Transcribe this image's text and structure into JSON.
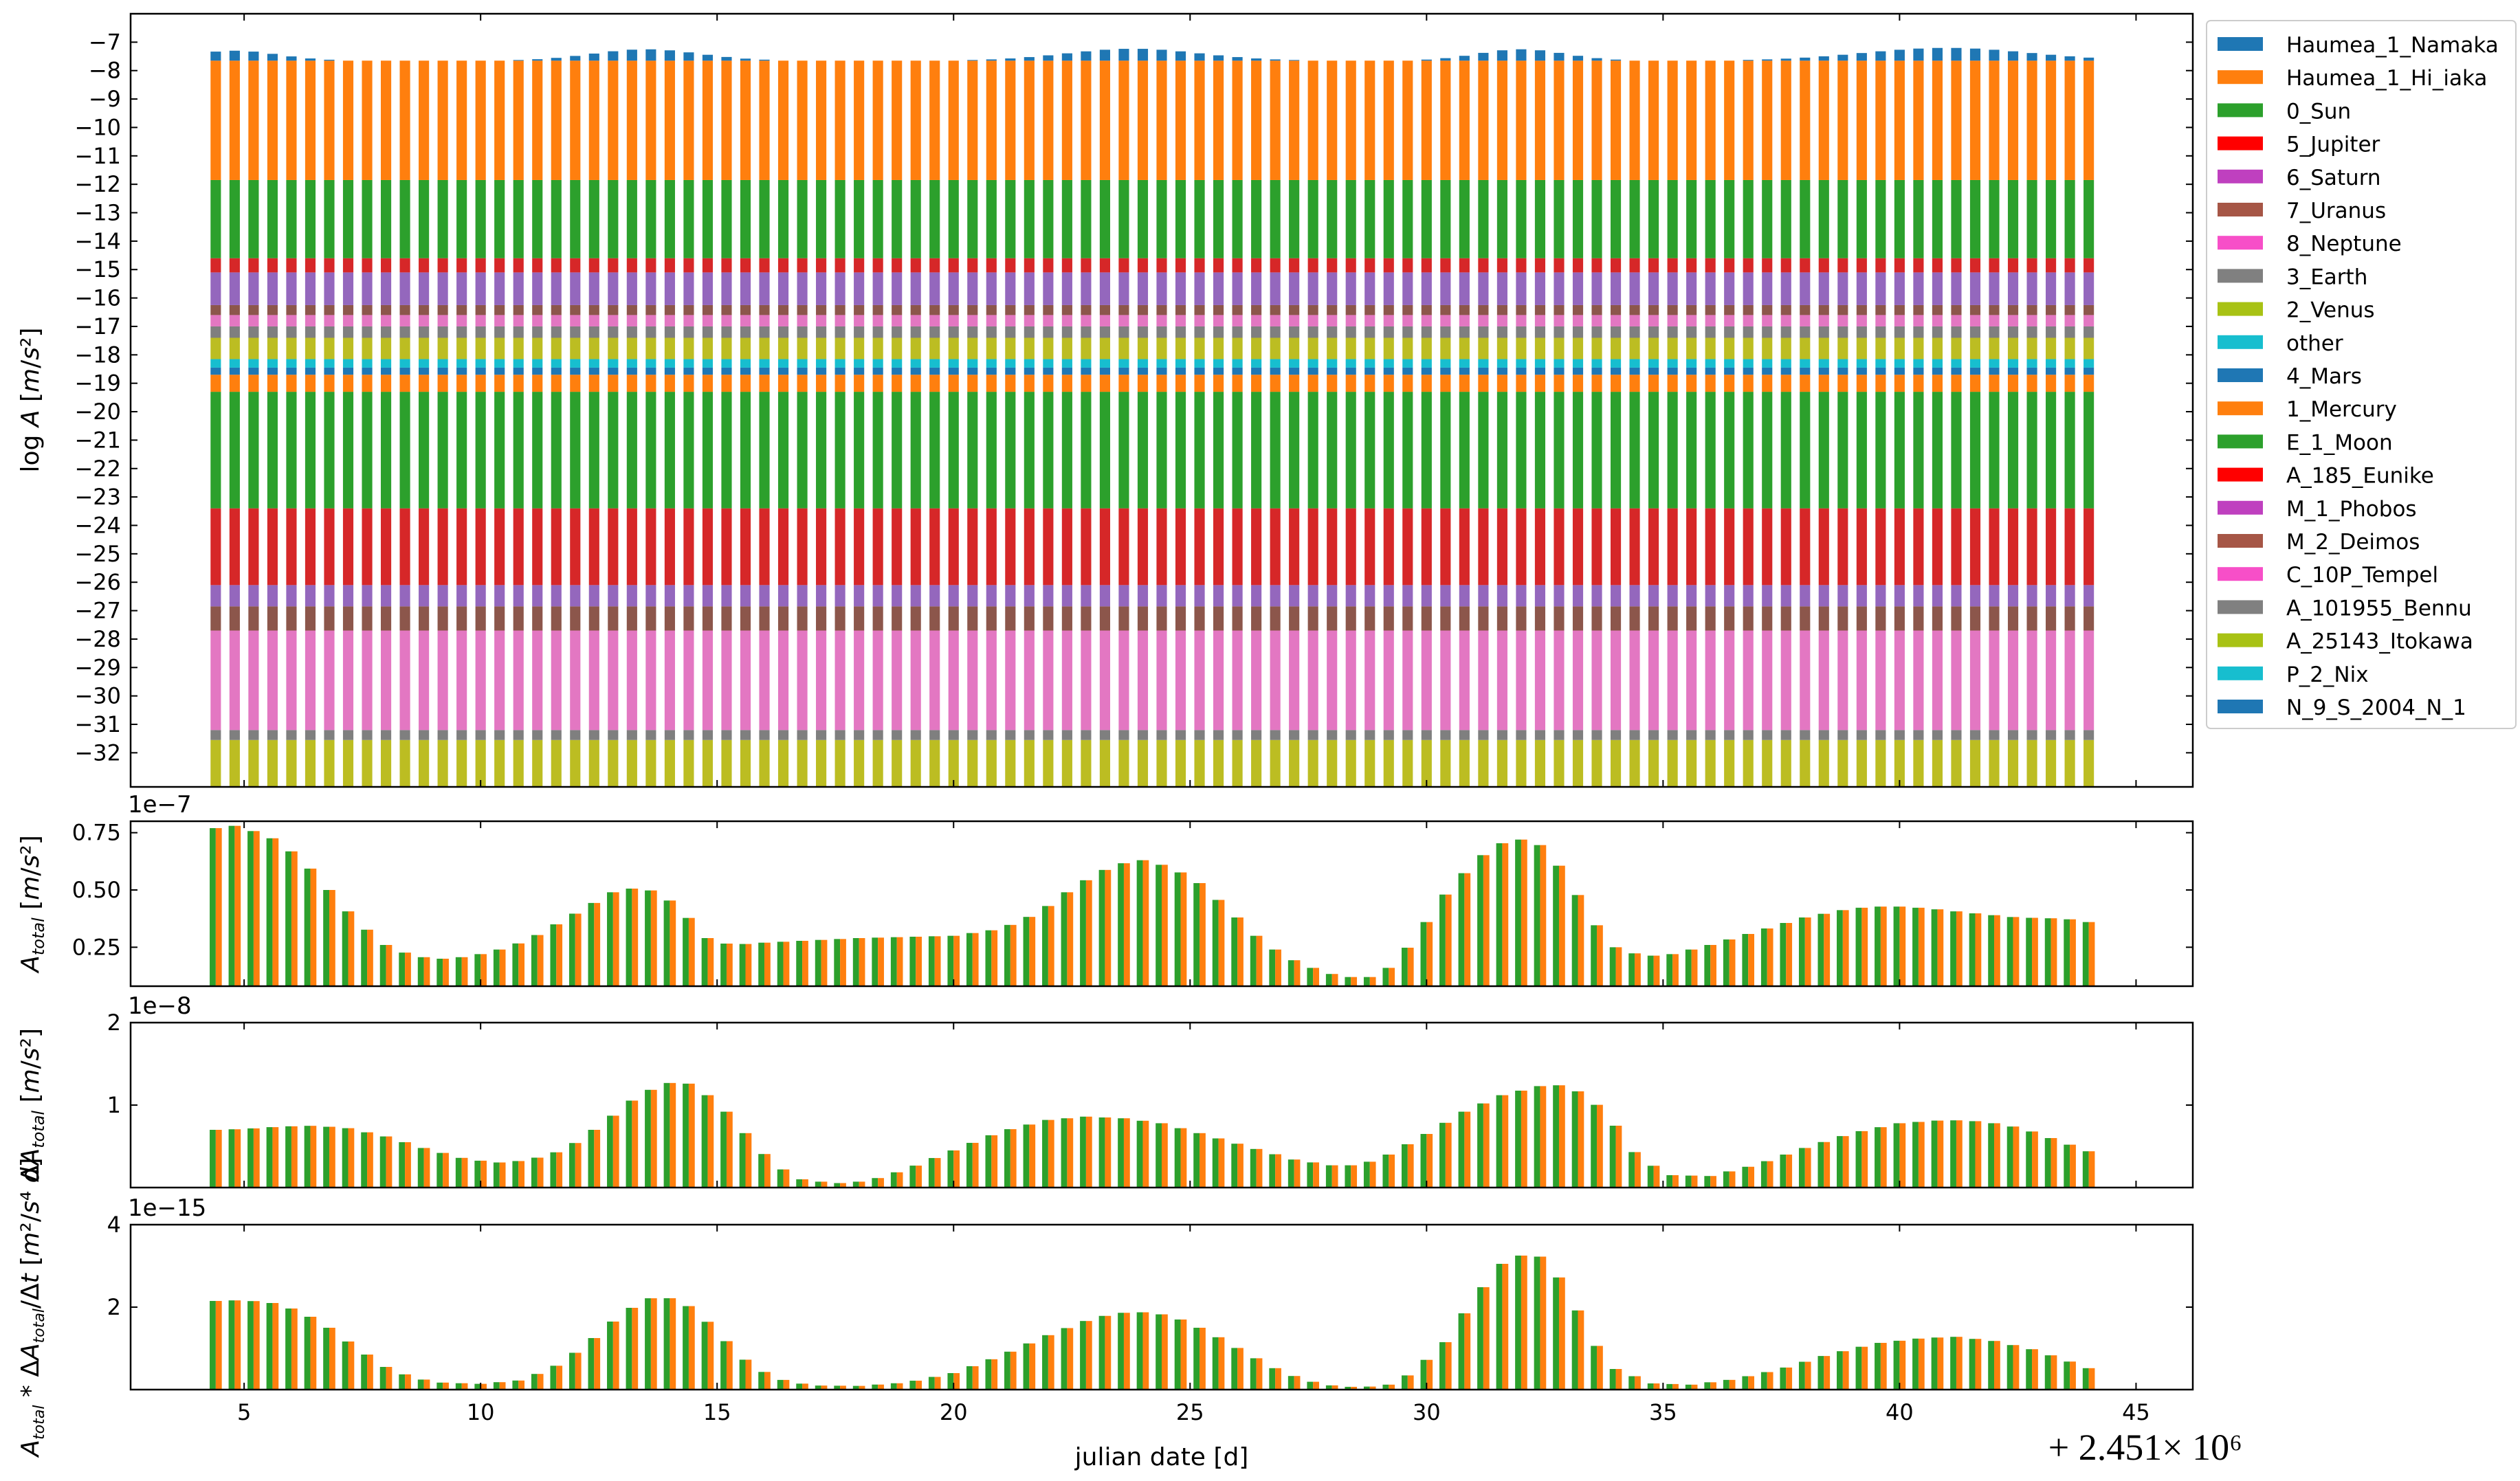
{
  "chart_data": [
    {
      "type": "bar",
      "stacked": true,
      "xlabel": "",
      "ylabel": "log A [m/s²]",
      "ylim": [
        -33.2,
        -6.0
      ],
      "yticks": [
        -7,
        -8,
        -9,
        -10,
        -11,
        -12,
        -13,
        -14,
        -15,
        -16,
        -17,
        -18,
        -19,
        -20,
        -21,
        -22,
        -23,
        -24,
        -25,
        -26,
        -27,
        -28,
        -29,
        -30,
        -31,
        -32
      ],
      "x": {
        "start": 4.4,
        "end": 44.0,
        "count": 100
      },
      "legend_position": "outside-right",
      "grid": false,
      "series_bands": [
        {
          "name": "A_25143_Itokawa",
          "color": "#bcbd22",
          "from": -33.2,
          "to": -31.55
        },
        {
          "name": "A_101955_Bennu",
          "color": "#7f7f7f",
          "from": -31.55,
          "to": -31.2
        },
        {
          "name": "C_10P_Tempel",
          "color": "#e377c2",
          "from": -31.2,
          "to": -27.7
        },
        {
          "name": "M_2_Deimos",
          "color": "#8c564b",
          "from": -27.7,
          "to": -26.85
        },
        {
          "name": "M_1_Phobos",
          "color": "#9467bd",
          "from": -26.85,
          "to": -26.1
        },
        {
          "name": "A_185_Eunike",
          "color": "#d62728",
          "from": -26.1,
          "to": -23.4
        },
        {
          "name": "E_1_Moon",
          "color": "#2ca02c",
          "from": -23.4,
          "to": -19.3
        },
        {
          "name": "1_Mercury",
          "color": "#ff7f0e",
          "from": -19.3,
          "to": -18.7
        },
        {
          "name": "4_Mars",
          "color": "#1f77b4",
          "from": -18.7,
          "to": -18.45
        },
        {
          "name": "other",
          "color": "#17becf",
          "from": -18.45,
          "to": -18.15
        },
        {
          "name": "2_Venus",
          "color": "#bcbd22",
          "from": -18.15,
          "to": -17.4
        },
        {
          "name": "3_Earth",
          "color": "#7f7f7f",
          "from": -17.4,
          "to": -17.0
        },
        {
          "name": "8_Neptune",
          "color": "#e377c2",
          "from": -17.0,
          "to": -16.6
        },
        {
          "name": "7_Uranus",
          "color": "#8c564b",
          "from": -16.6,
          "to": -16.25
        },
        {
          "name": "6_Saturn",
          "color": "#9467bd",
          "from": -16.25,
          "to": -15.1
        },
        {
          "name": "5_Jupiter",
          "color": "#d62728",
          "from": -15.1,
          "to": -14.6
        },
        {
          "name": "0_Sun",
          "color": "#2ca02c",
          "from": -14.6,
          "to": -11.85
        },
        {
          "name": "Haumea_1_Hi_iaka",
          "color": "#ff7f0e",
          "from": -11.85,
          "to": -7.65
        }
      ],
      "top_series": {
        "name": "Haumea_1_Namaka",
        "color": "#1f77b4",
        "base": -7.65,
        "peaks": [
          {
            "x": 4.8,
            "h": 0.35,
            "w": 1.3
          },
          {
            "x": 13.5,
            "h": 0.4,
            "w": 1.6
          },
          {
            "x": 23.8,
            "h": 0.42,
            "w": 2.0
          },
          {
            "x": 32.0,
            "h": 0.4,
            "w": 1.3
          },
          {
            "x": 41.0,
            "h": 0.45,
            "w": 2.5
          }
        ]
      },
      "legend": [
        {
          "label": "Haumea_1_Namaka",
          "color": "#1f77b4"
        },
        {
          "label": "Haumea_1_Hi_iaka",
          "color": "#ff7f0e"
        },
        {
          "label": "0_Sun",
          "color": "#2ca02c"
        },
        {
          "label": "5_Jupiter",
          "color": "#ff0000"
        },
        {
          "label": "6_Saturn",
          "color": "#bf40bf"
        },
        {
          "label": "7_Uranus",
          "color": "#a65646"
        },
        {
          "label": "8_Neptune",
          "color": "#f74fc8"
        },
        {
          "label": "3_Earth",
          "color": "#808080"
        },
        {
          "label": "2_Venus",
          "color": "#a8c214"
        },
        {
          "label": "other",
          "color": "#17becf"
        },
        {
          "label": "4_Mars",
          "color": "#1f77b4"
        },
        {
          "label": "1_Mercury",
          "color": "#ff7f0e"
        },
        {
          "label": "E_1_Moon",
          "color": "#2ca02c"
        },
        {
          "label": "A_185_Eunike",
          "color": "#ff0000"
        },
        {
          "label": "M_1_Phobos",
          "color": "#bf40bf"
        },
        {
          "label": "M_2_Deimos",
          "color": "#a65646"
        },
        {
          "label": "C_10P_Tempel",
          "color": "#f74fc8"
        },
        {
          "label": "A_101955_Bennu",
          "color": "#808080"
        },
        {
          "label": "A_25143_Itokawa",
          "color": "#a8c214"
        },
        {
          "label": "P_2_Nix",
          "color": "#17becf"
        },
        {
          "label": "N_9_S_2004_N_1",
          "color": "#1f77b4"
        }
      ]
    },
    {
      "type": "bar",
      "ylabel": "A_total [m/s²]",
      "offset_text": "1e−7",
      "ylim": [
        0.08,
        0.8
      ],
      "yticks": [
        0.25,
        0.5,
        0.75
      ],
      "ytick_labels": [
        "0.25",
        "0.50",
        "0.75"
      ],
      "colors": [
        "#2ca02c",
        "#ff7f0e"
      ],
      "x": {
        "start": 4.4,
        "end": 44.0,
        "count": 100
      },
      "points": [
        [
          4.4,
          0.77
        ],
        [
          4.8,
          0.78
        ],
        [
          5.5,
          0.74
        ],
        [
          6.2,
          0.64
        ],
        [
          6.8,
          0.5
        ],
        [
          7.4,
          0.36
        ],
        [
          8.0,
          0.26
        ],
        [
          8.6,
          0.21
        ],
        [
          9.2,
          0.2
        ],
        [
          9.8,
          0.21
        ],
        [
          10.4,
          0.24
        ],
        [
          11.0,
          0.28
        ],
        [
          11.6,
          0.35
        ],
        [
          12.2,
          0.42
        ],
        [
          12.8,
          0.49
        ],
        [
          13.3,
          0.51
        ],
        [
          13.8,
          0.49
        ],
        [
          14.3,
          0.4
        ],
        [
          14.8,
          0.29
        ],
        [
          15.3,
          0.26
        ],
        [
          16.0,
          0.27
        ],
        [
          17.0,
          0.28
        ],
        [
          18.0,
          0.29
        ],
        [
          19.0,
          0.295
        ],
        [
          20.0,
          0.3
        ],
        [
          21.0,
          0.33
        ],
        [
          21.8,
          0.4
        ],
        [
          22.6,
          0.52
        ],
        [
          23.4,
          0.61
        ],
        [
          24.0,
          0.63
        ],
        [
          24.6,
          0.6
        ],
        [
          25.2,
          0.53
        ],
        [
          25.8,
          0.42
        ],
        [
          26.4,
          0.3
        ],
        [
          27.0,
          0.21
        ],
        [
          27.6,
          0.16
        ],
        [
          28.2,
          0.12
        ],
        [
          28.8,
          0.12
        ],
        [
          29.3,
          0.17
        ],
        [
          29.8,
          0.3
        ],
        [
          30.4,
          0.48
        ],
        [
          31.0,
          0.62
        ],
        [
          31.5,
          0.7
        ],
        [
          32.0,
          0.72
        ],
        [
          32.5,
          0.69
        ],
        [
          33.0,
          0.55
        ],
        [
          33.5,
          0.37
        ],
        [
          34.0,
          0.25
        ],
        [
          34.6,
          0.21
        ],
        [
          35.2,
          0.22
        ],
        [
          36.0,
          0.26
        ],
        [
          37.0,
          0.32
        ],
        [
          38.0,
          0.38
        ],
        [
          39.0,
          0.42
        ],
        [
          39.8,
          0.43
        ],
        [
          40.6,
          0.42
        ],
        [
          41.5,
          0.4
        ],
        [
          42.5,
          0.38
        ],
        [
          43.5,
          0.375
        ],
        [
          44.0,
          0.36
        ]
      ]
    },
    {
      "type": "bar",
      "ylabel": "ΔA_total [m/s²]",
      "offset_text": "1e−8",
      "ylim": [
        0,
        2.0
      ],
      "yticks": [
        1,
        2
      ],
      "ytick_labels": [
        "1",
        "2"
      ],
      "colors": [
        "#2ca02c",
        "#ff7f0e"
      ],
      "x": {
        "start": 4.4,
        "end": 44.0,
        "count": 100
      },
      "points": [
        [
          4.4,
          0.7
        ],
        [
          5.0,
          0.71
        ],
        [
          5.8,
          0.74
        ],
        [
          6.5,
          0.75
        ],
        [
          7.2,
          0.72
        ],
        [
          8.0,
          0.62
        ],
        [
          8.8,
          0.48
        ],
        [
          9.6,
          0.36
        ],
        [
          10.3,
          0.3
        ],
        [
          11.0,
          0.33
        ],
        [
          11.8,
          0.46
        ],
        [
          12.6,
          0.78
        ],
        [
          13.3,
          1.1
        ],
        [
          13.9,
          1.27
        ],
        [
          14.4,
          1.26
        ],
        [
          15.0,
          1.05
        ],
        [
          15.6,
          0.66
        ],
        [
          16.2,
          0.28
        ],
        [
          16.8,
          0.1
        ],
        [
          17.5,
          0.05
        ],
        [
          18.2,
          0.08
        ],
        [
          19.0,
          0.22
        ],
        [
          20.0,
          0.45
        ],
        [
          21.0,
          0.68
        ],
        [
          22.0,
          0.82
        ],
        [
          22.8,
          0.86
        ],
        [
          23.6,
          0.84
        ],
        [
          24.4,
          0.78
        ],
        [
          25.2,
          0.66
        ],
        [
          26.2,
          0.5
        ],
        [
          27.2,
          0.34
        ],
        [
          28.0,
          0.27
        ],
        [
          28.6,
          0.27
        ],
        [
          29.2,
          0.4
        ],
        [
          30.0,
          0.65
        ],
        [
          30.8,
          0.92
        ],
        [
          31.6,
          1.12
        ],
        [
          32.4,
          1.23
        ],
        [
          32.8,
          1.24
        ],
        [
          33.4,
          1.13
        ],
        [
          34.0,
          0.75
        ],
        [
          34.5,
          0.35
        ],
        [
          35.2,
          0.15
        ],
        [
          36.0,
          0.14
        ],
        [
          37.0,
          0.28
        ],
        [
          38.0,
          0.48
        ],
        [
          39.0,
          0.66
        ],
        [
          40.0,
          0.78
        ],
        [
          41.0,
          0.82
        ],
        [
          41.8,
          0.8
        ],
        [
          42.6,
          0.72
        ],
        [
          43.4,
          0.56
        ],
        [
          44.0,
          0.44
        ]
      ]
    },
    {
      "type": "bar",
      "ylabel": "A_total * ΔA_total/Δt [m²/(s⁴ d)]",
      "offset_text": "1e−15",
      "ylim": [
        0,
        4.0
      ],
      "yticks": [
        2,
        4
      ],
      "ytick_labels": [
        "2",
        "4"
      ],
      "colors": [
        "#2ca02c",
        "#ff7f0e"
      ],
      "x": {
        "start": 4.4,
        "end": 44.0,
        "count": 100
      },
      "points": [
        [
          4.4,
          2.15
        ],
        [
          5.0,
          2.17
        ],
        [
          5.6,
          2.1
        ],
        [
          6.2,
          1.9
        ],
        [
          6.8,
          1.5
        ],
        [
          7.4,
          1.0
        ],
        [
          8.0,
          0.55
        ],
        [
          8.6,
          0.28
        ],
        [
          9.2,
          0.17
        ],
        [
          10.0,
          0.14
        ],
        [
          10.8,
          0.22
        ],
        [
          11.5,
          0.5
        ],
        [
          12.2,
          1.05
        ],
        [
          12.8,
          1.65
        ],
        [
          13.4,
          2.15
        ],
        [
          13.8,
          2.28
        ],
        [
          14.3,
          2.12
        ],
        [
          14.9,
          1.55
        ],
        [
          15.5,
          0.8
        ],
        [
          16.2,
          0.28
        ],
        [
          17.0,
          0.1
        ],
        [
          18.0,
          0.09
        ],
        [
          19.0,
          0.17
        ],
        [
          20.0,
          0.4
        ],
        [
          21.0,
          0.82
        ],
        [
          22.0,
          1.32
        ],
        [
          23.0,
          1.75
        ],
        [
          23.8,
          1.9
        ],
        [
          24.6,
          1.8
        ],
        [
          25.4,
          1.4
        ],
        [
          26.2,
          0.88
        ],
        [
          27.0,
          0.4
        ],
        [
          27.8,
          0.12
        ],
        [
          28.6,
          0.05
        ],
        [
          29.2,
          0.12
        ],
        [
          29.7,
          0.4
        ],
        [
          30.4,
          1.15
        ],
        [
          31.0,
          2.2
        ],
        [
          31.6,
          3.05
        ],
        [
          32.1,
          3.3
        ],
        [
          32.5,
          3.2
        ],
        [
          33.0,
          2.4
        ],
        [
          33.5,
          1.2
        ],
        [
          34.0,
          0.5
        ],
        [
          34.8,
          0.15
        ],
        [
          35.6,
          0.12
        ],
        [
          36.5,
          0.25
        ],
        [
          37.5,
          0.5
        ],
        [
          38.5,
          0.85
        ],
        [
          39.5,
          1.12
        ],
        [
          40.5,
          1.25
        ],
        [
          41.2,
          1.28
        ],
        [
          42.0,
          1.18
        ],
        [
          42.8,
          0.98
        ],
        [
          43.5,
          0.72
        ],
        [
          44.0,
          0.52
        ]
      ]
    }
  ],
  "shared_x": {
    "label": "julian date [d]",
    "ticks": [
      5,
      10,
      15,
      20,
      25,
      30,
      35,
      40,
      45
    ],
    "xlim": [
      2.6,
      46.2
    ],
    "offset_text": "+ 2.451× 10⁶"
  }
}
